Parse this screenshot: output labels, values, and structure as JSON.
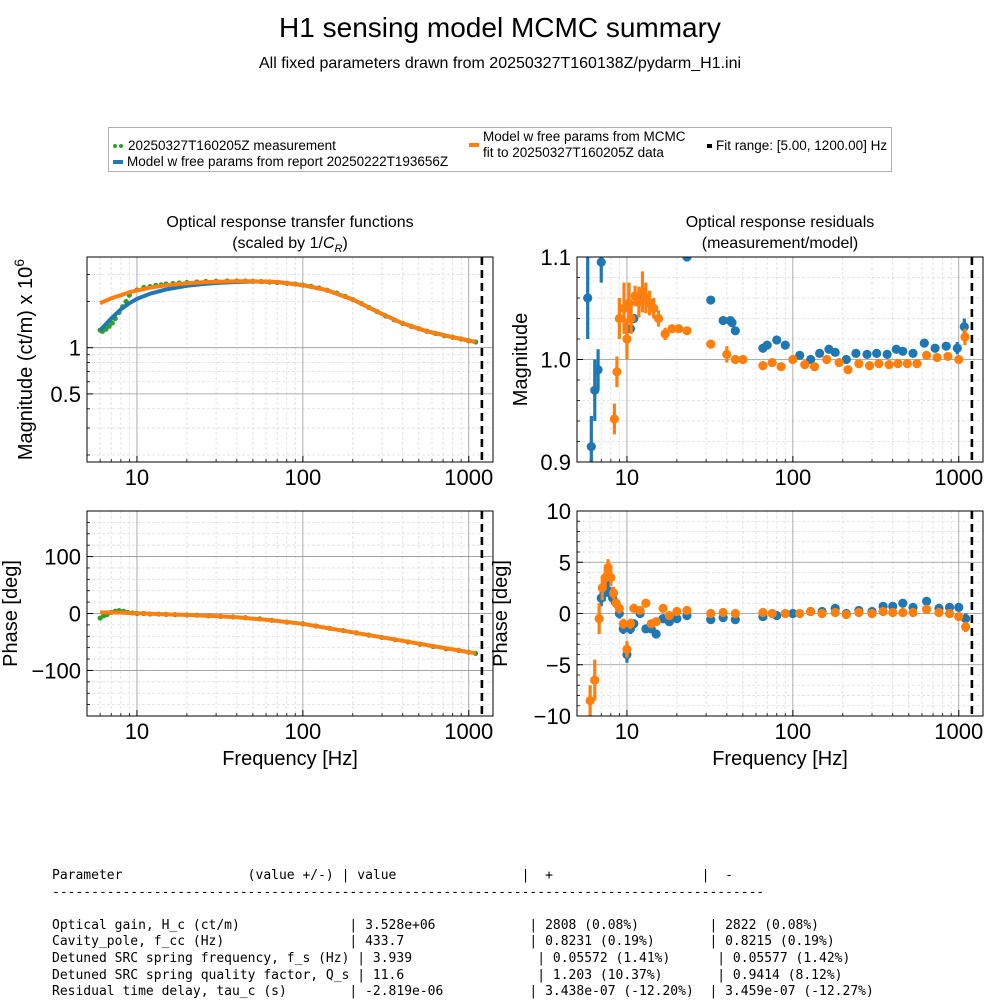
{
  "title": "H1 sensing model MCMC summary",
  "subtitle": "All fixed parameters drawn from 20250327T160138Z/pydarm_H1.ini",
  "legend": {
    "measurement": "20250327T160205Z measurement",
    "report_model": "Model w free params from report 20250222T193656Z",
    "mcmc_model_line1": "Model w free params from MCMC",
    "mcmc_model_line2": "fit to 20250327T160205Z data",
    "fit_range": "Fit range: [5.00, 1200.00] Hz"
  },
  "colors": {
    "measurement": "#2ca02c",
    "report": "#1f77b4",
    "mcmc": "#ff7f0e",
    "fit_range": "#000000"
  },
  "chart_data": [
    {
      "id": "tf_mag",
      "type": "line",
      "title": "Optical response transfer functions",
      "subtitle": "(scaled by 1/C_R)",
      "xlabel": "",
      "ylabel": "Magnitude (ct/m) x 10^6",
      "xscale": "log",
      "yscale": "log",
      "xlim": [
        5,
        1400
      ],
      "ylim": [
        0.18,
        3.9
      ],
      "xticks": [
        10,
        100,
        1000
      ],
      "xticklabels": [
        "10",
        "100",
        "1000"
      ],
      "yticks": [
        0.5,
        1
      ],
      "yticklabels": [
        "0.5",
        "1"
      ],
      "fit_range_x": 1200,
      "series": [
        {
          "name": "20250327T160205Z measurement",
          "style": "dots",
          "color": "#2ca02c",
          "x": [
            6.0,
            6.2,
            6.5,
            6.8,
            7.1,
            7.4,
            7.8,
            8.2,
            8.6,
            9.0,
            10.0,
            11.0,
            12.0,
            13.0,
            14.0,
            15.0,
            16.5,
            18.0,
            20.0,
            23.0,
            26.0,
            30.0,
            35.0,
            40.0,
            45.0,
            50.0,
            56.0,
            63.0,
            70.0,
            80.0,
            90.0,
            100.0,
            112.0,
            125.0,
            140.0,
            160.0,
            180.0,
            200.0,
            225.0,
            250.0,
            280.0,
            315.0,
            355.0,
            400.0,
            450.0,
            500.0,
            560.0,
            630.0,
            710.0,
            800.0,
            900.0,
            1000.0,
            1100.0
          ],
          "y": [
            1.3,
            1.28,
            1.32,
            1.38,
            1.45,
            1.55,
            1.7,
            1.85,
            2.0,
            2.2,
            2.38,
            2.47,
            2.5,
            2.55,
            2.57,
            2.6,
            2.62,
            2.64,
            2.66,
            2.68,
            2.7,
            2.71,
            2.72,
            2.72,
            2.72,
            2.71,
            2.7,
            2.68,
            2.66,
            2.63,
            2.6,
            2.56,
            2.51,
            2.45,
            2.37,
            2.27,
            2.16,
            2.06,
            1.94,
            1.83,
            1.72,
            1.61,
            1.52,
            1.44,
            1.38,
            1.33,
            1.28,
            1.24,
            1.2,
            1.17,
            1.14,
            1.11,
            1.09
          ]
        },
        {
          "name": "Model w free params from report 20250222T193656Z",
          "style": "line",
          "color": "#1f77b4",
          "x": [
            6,
            7,
            8,
            9,
            10,
            12,
            15,
            20,
            25,
            30,
            40,
            50,
            70,
            100,
            140,
            200,
            280,
            400,
            560,
            800,
            1100
          ],
          "y": [
            1.3,
            1.55,
            1.78,
            1.95,
            2.08,
            2.25,
            2.4,
            2.53,
            2.6,
            2.64,
            2.68,
            2.7,
            2.68,
            2.56,
            2.37,
            2.06,
            1.72,
            1.44,
            1.28,
            1.17,
            1.09
          ]
        },
        {
          "name": "Model w free params from MCMC fit to 20250327T160205Z data",
          "style": "line",
          "color": "#ff7f0e",
          "x": [
            6,
            7,
            8,
            9,
            10,
            12,
            15,
            20,
            25,
            30,
            40,
            50,
            70,
            100,
            140,
            200,
            280,
            400,
            560,
            800,
            1100
          ],
          "y": [
            1.95,
            2.1,
            2.2,
            2.3,
            2.36,
            2.46,
            2.55,
            2.63,
            2.67,
            2.69,
            2.71,
            2.71,
            2.68,
            2.56,
            2.37,
            2.06,
            1.72,
            1.44,
            1.28,
            1.17,
            1.09
          ]
        }
      ]
    },
    {
      "id": "res_mag",
      "type": "scatter",
      "title": "Optical response residuals",
      "subtitle": "(measurement/model)",
      "xlabel": "",
      "ylabel": "Magnitude",
      "xscale": "log",
      "yscale": "linear",
      "xlim": [
        5,
        1400
      ],
      "ylim": [
        0.9,
        1.1
      ],
      "xticks": [
        10,
        100,
        1000
      ],
      "xticklabels": [
        "10",
        "100",
        "1000"
      ],
      "yticks": [
        0.9,
        1.0,
        1.1
      ],
      "yticklabels": [
        "0.9",
        "1.0",
        "1.1"
      ],
      "fit_range_x": 1200,
      "series": [
        {
          "name": "report residual",
          "color": "#1f77b4",
          "x": [
            5.8,
            6.1,
            6.4,
            6.7,
            7.0,
            10.5,
            11.0,
            12.0,
            23.0,
            32.0,
            38.0,
            42.0,
            43.0,
            45.0,
            66.0,
            70.0,
            80.0,
            90.0,
            110.0,
            128.0,
            145.0,
            165.0,
            180.0,
            210.0,
            240.0,
            280.0,
            320.0,
            370.0,
            420.0,
            460.0,
            530.0,
            620.0,
            720.0,
            840.0,
            980.0,
            1080.0
          ],
          "y": [
            1.06,
            0.915,
            0.97,
            0.99,
            1.095,
            1.03,
            1.04,
            1.06,
            1.1,
            1.058,
            1.038,
            1.038,
            1.036,
            1.028,
            1.011,
            1.014,
            1.019,
            1.014,
            1.004,
            1.0,
            1.006,
            1.01,
            1.007,
            1.0,
            1.006,
            1.005,
            1.006,
            1.005,
            1.01,
            1.008,
            1.006,
            1.016,
            1.011,
            1.013,
            1.011,
            1.032
          ],
          "err": [
            0.04,
            0.03,
            0.03,
            0.02,
            0.02,
            0.004,
            0.004,
            0.004,
            0.003,
            0.003,
            0.003,
            0.003,
            0.003,
            0.003,
            0.002,
            0.002,
            0.002,
            0.002,
            0.002,
            0.002,
            0.002,
            0.002,
            0.002,
            0.002,
            0.002,
            0.002,
            0.002,
            0.002,
            0.002,
            0.002,
            0.002,
            0.002,
            0.002,
            0.002,
            0.006,
            0.008
          ]
        },
        {
          "name": "MCMC residual",
          "color": "#ff7f0e",
          "x": [
            8.4,
            8.7,
            9.0,
            9.6,
            10.0,
            10.3,
            10.6,
            11.2,
            11.8,
            12.4,
            13.0,
            13.7,
            14.5,
            15.5,
            17.0,
            18.7,
            20.5,
            23.0,
            32.0,
            40.0,
            45.0,
            50.0,
            66.0,
            75.0,
            85.0,
            100.0,
            118.0,
            135.0,
            160.0,
            190.0,
            215.0,
            250.0,
            290.0,
            330.0,
            380.0,
            430.0,
            490.0,
            560.0,
            640.0,
            740.0,
            860.0,
            1000.0,
            1090.0
          ],
          "y": [
            0.942,
            0.988,
            1.04,
            1.05,
            1.02,
            1.055,
            1.04,
            1.062,
            1.056,
            1.066,
            1.06,
            1.055,
            1.05,
            1.04,
            1.025,
            1.03,
            1.03,
            1.028,
            1.015,
            1.005,
            1.0,
            1.0,
            0.994,
            0.997,
            0.993,
            1.0,
            0.995,
            0.993,
            1.0,
            0.997,
            0.99,
            0.996,
            0.994,
            0.996,
            0.995,
            0.996,
            0.996,
            0.996,
            1.004,
            1.002,
            1.003,
            1.0,
            1.022
          ],
          "err": [
            0.015,
            0.015,
            0.02,
            0.025,
            0.02,
            0.02,
            0.015,
            0.01,
            0.015,
            0.02,
            0.015,
            0.012,
            0.01,
            0.008,
            0.006,
            0.004,
            0.003,
            0.002,
            0.002,
            0.008,
            0.004,
            0.002,
            0.002,
            0.002,
            0.002,
            0.002,
            0.002,
            0.002,
            0.002,
            0.002,
            0.002,
            0.002,
            0.002,
            0.002,
            0.002,
            0.002,
            0.002,
            0.002,
            0.002,
            0.002,
            0.002,
            0.004,
            0.008
          ]
        }
      ]
    },
    {
      "id": "tf_phase",
      "type": "line",
      "title": "",
      "xlabel": "Frequency [Hz]",
      "ylabel": "Phase [deg]",
      "xscale": "log",
      "yscale": "linear",
      "xlim": [
        5,
        1400
      ],
      "ylim": [
        -180,
        180
      ],
      "xticks": [
        10,
        100,
        1000
      ],
      "xticklabels": [
        "10",
        "100",
        "1000"
      ],
      "yticks": [
        -100,
        0,
        100
      ],
      "yticklabels": [
        "−100",
        "0",
        "100"
      ],
      "fit_range_x": 1200,
      "series": [
        {
          "name": "20250327T160205Z measurement",
          "style": "dots",
          "color": "#2ca02c",
          "x": [
            6.0,
            6.3,
            6.6,
            7.0,
            7.4,
            7.8,
            8.3,
            8.8,
            9.4,
            10.0,
            11.0,
            12.0,
            13.5,
            15.0,
            17.0,
            20.0,
            23.0,
            27.0,
            32.0,
            38.0,
            45.0,
            55.0,
            65.0,
            80.0,
            100.0,
            120.0,
            145.0,
            175.0,
            210.0,
            250.0,
            300.0,
            360.0,
            430.0,
            510.0,
            610.0,
            730.0,
            870.0,
            1000.0,
            1100.0
          ],
          "y": [
            -8.0,
            -4.0,
            -2.0,
            2.0,
            4.0,
            5.0,
            4.0,
            2.0,
            1.0,
            0.0,
            0.0,
            -1.0,
            -1.0,
            -1.5,
            -2.0,
            -2.5,
            -3.0,
            -4.0,
            -5.0,
            -6.0,
            -7.5,
            -9.5,
            -12.0,
            -15.0,
            -18.0,
            -22.0,
            -26.0,
            -30.0,
            -34.0,
            -38.0,
            -42.0,
            -46.0,
            -50.0,
            -54.0,
            -58.0,
            -62.0,
            -65.0,
            -68.0,
            -70.0
          ]
        },
        {
          "name": "Model w free params from MCMC fit to 20250327T160205Z data",
          "style": "line",
          "color": "#ff7f0e",
          "x": [
            6,
            7,
            8,
            10,
            15,
            20,
            30,
            40,
            60,
            80,
            100,
            150,
            200,
            300,
            400,
            600,
            800,
            1100
          ],
          "y": [
            2.0,
            2.0,
            1.5,
            0.5,
            -1.5,
            -2.5,
            -4.5,
            -6.5,
            -11.0,
            -15.0,
            -18.0,
            -27.0,
            -33.0,
            -42.0,
            -48.0,
            -57.0,
            -63.0,
            -70.0
          ]
        }
      ]
    },
    {
      "id": "res_phase",
      "type": "scatter",
      "title": "",
      "xlabel": "Frequency [Hz]",
      "ylabel": "Phase [deg]",
      "xscale": "log",
      "yscale": "linear",
      "xlim": [
        5,
        1400
      ],
      "ylim": [
        -10,
        10
      ],
      "xticks": [
        10,
        100,
        1000
      ],
      "xticklabels": [
        "10",
        "100",
        "1000"
      ],
      "yticks": [
        -10,
        -5,
        0,
        5,
        10
      ],
      "yticklabels": [
        "−10",
        "−5",
        "0",
        "5",
        "10"
      ],
      "fit_range_x": 1200,
      "series": [
        {
          "name": "report residual",
          "color": "#1f77b4",
          "x": [
            7.0,
            7.3,
            7.6,
            7.9,
            8.2,
            8.6,
            9.0,
            9.5,
            10.0,
            10.5,
            11.0,
            12.0,
            13.0,
            14.0,
            15.0,
            16.5,
            18.0,
            20.0,
            23.0,
            32.0,
            38.0,
            45.0,
            66.0,
            80.0,
            100.0,
            128.0,
            150.0,
            180.0,
            210.0,
            250.0,
            300.0,
            350.0,
            400.0,
            460.0,
            530.0,
            640.0,
            760.0,
            880.0,
            1000.0,
            1100.0
          ],
          "y": [
            1.5,
            2.0,
            3.0,
            2.0,
            1.5,
            1.0,
            0.0,
            -1.5,
            -4.0,
            -1.5,
            -1.0,
            0.0,
            -1.5,
            -1.5,
            -2.0,
            -0.5,
            -0.8,
            -0.5,
            -0.2,
            -0.6,
            -0.4,
            -0.6,
            -0.3,
            -0.2,
            0.0,
            0.2,
            0.2,
            0.5,
            0.0,
            0.3,
            0.2,
            0.7,
            0.7,
            1.0,
            0.6,
            1.2,
            0.5,
            0.6,
            0.6,
            -0.5
          ],
          "err": [
            0.8,
            0.8,
            0.8,
            0.6,
            0.6,
            0.5,
            0.5,
            0.5,
            0.8,
            0.5,
            0.4,
            0.4,
            0.4,
            0.4,
            0.4,
            0.3,
            0.3,
            0.3,
            0.3,
            0.3,
            0.2,
            0.2,
            0.2,
            0.2,
            0.2,
            0.2,
            0.2,
            0.2,
            0.2,
            0.2,
            0.2,
            0.2,
            0.2,
            0.2,
            0.2,
            0.2,
            0.2,
            0.2,
            0.4,
            0.5
          ]
        },
        {
          "name": "MCMC residual",
          "color": "#ff7f0e",
          "x": [
            6.0,
            6.4,
            6.8,
            7.1,
            7.4,
            7.7,
            8.0,
            8.3,
            8.6,
            9.0,
            9.5,
            10.0,
            10.5,
            11.0,
            12.0,
            13.0,
            14.0,
            15.0,
            16.5,
            18.0,
            20.0,
            23.0,
            32.0,
            38.0,
            45.0,
            66.0,
            75.0,
            90.0,
            110.0,
            128.0,
            150.0,
            180.0,
            210.0,
            250.0,
            300.0,
            350.0,
            400.0,
            460.0,
            530.0,
            640.0,
            760.0,
            880.0,
            1000.0,
            1100.0
          ],
          "y": [
            -8.5,
            -6.5,
            -0.5,
            2.5,
            3.5,
            4.5,
            3.5,
            2.0,
            1.0,
            0.5,
            -1.0,
            -3.5,
            -1.0,
            0.5,
            0.3,
            1.0,
            -1.0,
            -0.8,
            0.5,
            -0.2,
            0.2,
            0.3,
            0.0,
            0.1,
            0.0,
            0.1,
            0.0,
            0.0,
            0.0,
            0.2,
            0.0,
            0.1,
            -0.1,
            0.1,
            0.0,
            0.2,
            0.1,
            0.1,
            0.1,
            0.4,
            0.1,
            0.0,
            -0.3,
            -1.3
          ],
          "err": [
            1.5,
            2.0,
            1.5,
            1.2,
            1.0,
            0.8,
            0.8,
            0.6,
            0.5,
            0.5,
            0.5,
            0.8,
            0.5,
            0.4,
            0.4,
            0.4,
            0.4,
            0.4,
            0.3,
            0.3,
            0.3,
            0.3,
            0.3,
            0.2,
            0.2,
            0.2,
            0.2,
            0.2,
            0.2,
            0.2,
            0.2,
            0.2,
            0.2,
            0.2,
            0.2,
            0.2,
            0.2,
            0.2,
            0.2,
            0.2,
            0.2,
            0.2,
            0.4,
            0.5
          ]
        }
      ]
    }
  ],
  "parameter_table": {
    "header": "Parameter                (value +/-) | value                |  +                   |  -",
    "separator": "-------------------------------------------------------------------------------------------",
    "rows": [
      "Optical gain, H_c (ct/m)              | 3.528e+06            | 2808 (0.08%)         | 2822 (0.08%)",
      "Cavity_pole, f_cc (Hz)                | 433.7                | 0.8231 (0.19%)       | 0.8215 (0.19%)",
      "Detuned SRC spring frequency, f_s (Hz) | 3.939                | 0.05572 (1.41%)      | 0.05577 (1.42%)",
      "Detuned SRC spring quality factor, Q_s | 11.6                 | 1.203 (10.37%)       | 0.9414 (8.12%)",
      "Residual time delay, tau_c (s)        | -2.819e-06           | 3.438e-07 (-12.20%)  | 3.459e-07 (-12.27%)"
    ]
  }
}
